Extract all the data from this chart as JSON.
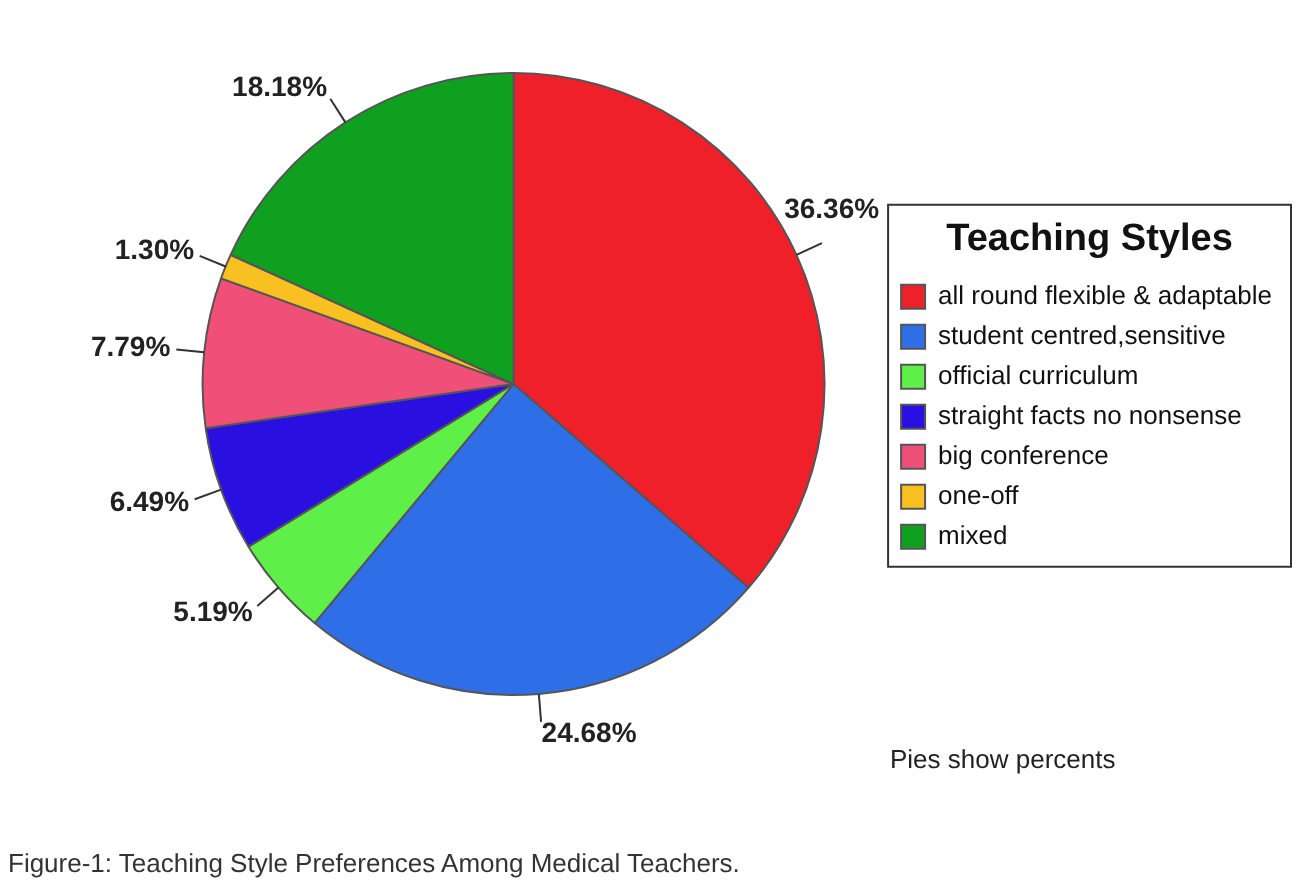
{
  "chart_data": {
    "type": "pie",
    "legend_title": "Teaching Styles",
    "legend": "right",
    "categories": [
      "all round flexible & adaptable",
      "student centred,sensitive",
      "official curriculum",
      "straight facts no nonsense",
      "big conference",
      "one-off",
      "mixed"
    ],
    "values": [
      36.36,
      24.68,
      5.19,
      6.49,
      7.79,
      1.3,
      18.18
    ],
    "value_labels": [
      "36.36%",
      "24.68%",
      "5.19%",
      "6.49%",
      "7.79%",
      "1.30%",
      "18.18%"
    ],
    "colors": [
      "#f0202a",
      "#2e6fe8",
      "#5ef048",
      "#2a10e0",
      "#f05078",
      "#f8c020",
      "#10a020"
    ],
    "annotations": [
      "Pies show percents",
      "Figure-1: Teaching Style Preferences Among Medical Teachers."
    ]
  }
}
